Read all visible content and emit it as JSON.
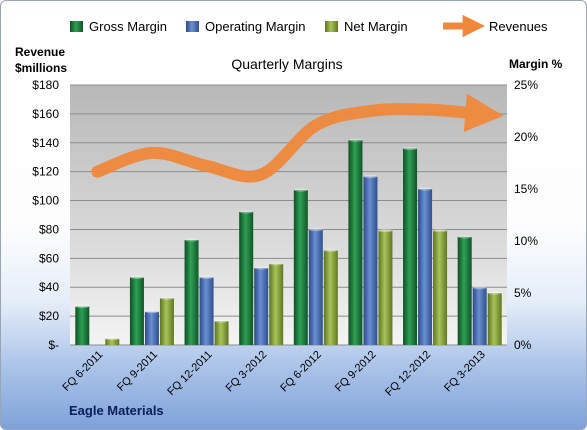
{
  "chart_data": {
    "type": "bar",
    "title": "Quarterly Margins",
    "ylabel_left": [
      "Revenue",
      "$millions"
    ],
    "ylabel_right": "Margin  %",
    "source_label": "Eagle Materials",
    "categories": [
      "FQ 6-2011",
      "FQ 9-2011",
      "FQ 12-2011",
      "FQ 3-2012",
      "FQ 6-2012",
      "FQ 9-2012",
      "FQ 12-2012",
      "FQ 3-2013"
    ],
    "left_axis": {
      "min": 0,
      "max": 180,
      "step": 20,
      "tick_labels": [
        "$-",
        "$20",
        "$40",
        "$60",
        "$80",
        "$100",
        "$120",
        "$140",
        "$160",
        "$180"
      ]
    },
    "right_axis": {
      "min": 0,
      "max": 25,
      "step": 5,
      "tick_labels": [
        "0%",
        "5%",
        "10%",
        "15%",
        "20%",
        "25%"
      ]
    },
    "grid": true,
    "legend_position": "top",
    "series": [
      {
        "name": "Gross Margin",
        "axis": "right",
        "kind": "bar",
        "color": "#1e7a3c",
        "values": [
          3.7,
          6.5,
          10.1,
          12.8,
          14.9,
          19.7,
          18.9,
          10.4
        ]
      },
      {
        "name": "Operating Margin",
        "axis": "right",
        "kind": "bar",
        "color": "#4a6fb5",
        "values": [
          0,
          3.2,
          6.5,
          7.4,
          11.1,
          16.2,
          15.0,
          5.5
        ]
      },
      {
        "name": "Net Margin",
        "axis": "right",
        "kind": "bar",
        "color": "#8aa63a",
        "values": [
          0.6,
          4.5,
          2.3,
          7.8,
          9.1,
          11.0,
          11.0,
          5.0
        ]
      },
      {
        "name": "Revenues",
        "axis": "left",
        "kind": "line",
        "color": "#f0883c",
        "values": [
          120,
          133,
          124,
          118,
          152,
          162,
          163,
          160
        ]
      }
    ]
  }
}
